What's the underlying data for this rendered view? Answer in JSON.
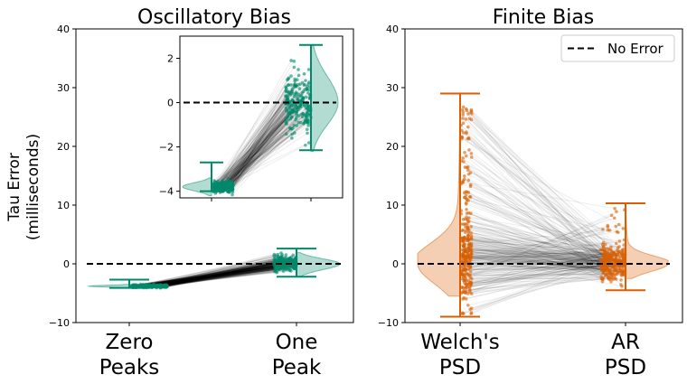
{
  "figure": {
    "ylabel_line1": "Tau Error",
    "ylabel_line2": "(milliseconds)",
    "legend_label": "No Error"
  },
  "chart_data": [
    {
      "type": "violin",
      "title": "Oscillatory Bias",
      "categories": [
        "Zero Peaks",
        "One Peak"
      ],
      "category_labels": [
        [
          "Zero",
          "Peaks"
        ],
        [
          "One",
          "Peak"
        ]
      ],
      "ylim": [
        -10,
        40
      ],
      "yticks": [
        -10,
        0,
        10,
        20,
        30,
        40
      ],
      "color": "#00896b",
      "reference_line": 0,
      "whiskers": [
        {
          "category": "Zero Peaks",
          "min": -4.1,
          "max": -2.7
        },
        {
          "category": "One Peak",
          "min": -2.2,
          "max": 2.6
        }
      ],
      "points_range": [
        {
          "category": "Zero Peaks",
          "min": -4.1,
          "max": -3.5,
          "center": -3.8
        },
        {
          "category": "One Peak",
          "min": -2.2,
          "max": 1.9,
          "center": 0.0
        }
      ],
      "inset": {
        "ylim": [
          -4.3,
          3.0
        ],
        "yticks": [
          -4,
          -2,
          0,
          2
        ]
      }
    },
    {
      "type": "violin",
      "title": "Finite Bias",
      "categories": [
        "Welch's PSD",
        "AR PSD"
      ],
      "category_labels": [
        [
          "Welch's",
          "PSD"
        ],
        [
          "AR",
          "PSD"
        ]
      ],
      "ylim": [
        -10,
        40
      ],
      "yticks": [
        -10,
        0,
        10,
        20,
        30,
        40
      ],
      "color": "#d95f02",
      "reference_line": 0,
      "legend": "top-right",
      "whiskers": [
        {
          "category": "Welch's PSD",
          "min": -9,
          "max": 29
        },
        {
          "category": "AR PSD",
          "min": -4.5,
          "max": 10.3
        }
      ],
      "points_range": [
        {
          "category": "Welch's PSD",
          "min": -9,
          "max": 28,
          "center": 0.0
        },
        {
          "category": "AR PSD",
          "min": -4.5,
          "max": 10.3,
          "center": 0.0
        }
      ]
    }
  ]
}
